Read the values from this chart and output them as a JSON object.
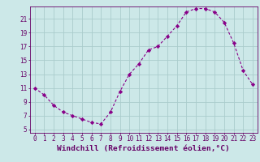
{
  "x": [
    0,
    1,
    2,
    3,
    4,
    5,
    6,
    7,
    8,
    9,
    10,
    11,
    12,
    13,
    14,
    15,
    16,
    17,
    18,
    19,
    20,
    21,
    22,
    23
  ],
  "y": [
    11,
    10,
    8.5,
    7.5,
    7,
    6.5,
    6,
    5.8,
    7.5,
    10.5,
    13,
    14.5,
    16.5,
    17,
    18.5,
    20,
    22,
    22.5,
    22.5,
    22,
    20.5,
    17.5,
    13.5,
    11.5
  ],
  "line_color": "#880088",
  "marker": "D",
  "marker_size": 2.2,
  "bg_color": "#cce8e8",
  "grid_color": "#aacccc",
  "xlabel": "Windchill (Refroidissement éolien,°C)",
  "xlim": [
    -0.5,
    23.5
  ],
  "ylim": [
    4.5,
    22.8
  ],
  "yticks": [
    5,
    7,
    9,
    11,
    13,
    15,
    17,
    19,
    21
  ],
  "xticks": [
    0,
    1,
    2,
    3,
    4,
    5,
    6,
    7,
    8,
    9,
    10,
    11,
    12,
    13,
    14,
    15,
    16,
    17,
    18,
    19,
    20,
    21,
    22,
    23
  ],
  "tick_label_fontsize": 5.5,
  "xlabel_fontsize": 6.8,
  "label_color": "#660066"
}
